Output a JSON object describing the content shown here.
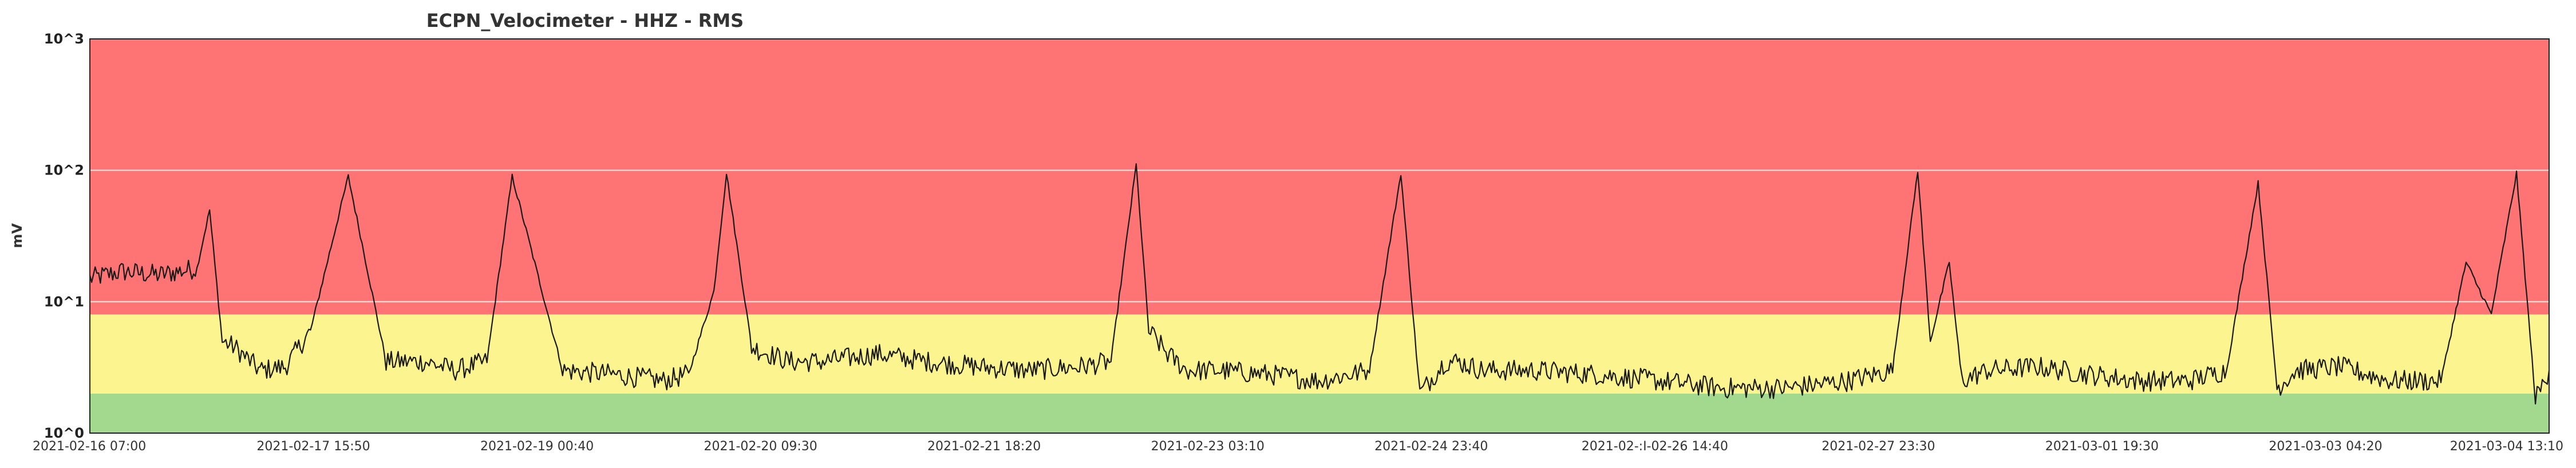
{
  "chart_data": {
    "type": "line",
    "title": "ECPN_Velocimeter - HHZ - RMS",
    "xlabel": "",
    "ylabel": "mV",
    "y_scale": "log",
    "ylim": [
      1,
      1000
    ],
    "y_ticks": [
      {
        "value": 1,
        "label": "10^0"
      },
      {
        "value": 10,
        "label": "10^1"
      },
      {
        "value": 100,
        "label": "10^2"
      },
      {
        "value": 1000,
        "label": "10^3"
      }
    ],
    "xlim": [
      "2021-02-16 07:00",
      "2021-03-04 13:10"
    ],
    "x_ticks": [
      "2021-02-16 07:00",
      "2021-02-17 15:50",
      "2021-02-19 00:40",
      "2021-02-20 09:30",
      "2021-02-21 18:20",
      "2021-02-23 03:10",
      "2021-02-24 23:40",
      "2021-02-:I-02-26 14:40",
      "2021-02-27 23:30",
      "2021-03-01 19:30",
      "2021-03-03 04:20",
      "2021-03-04 13:10"
    ],
    "grid": true,
    "bands": [
      {
        "from": 1,
        "to": 2,
        "color": "#a3d98e"
      },
      {
        "from": 2,
        "to": 8,
        "color": "#fcf48e"
      },
      {
        "from": 8,
        "to": 1000,
        "color": "#fe7474"
      }
    ],
    "line_color": "#1a1a1a",
    "series": [
      {
        "x": [
          "2021-02-16 07:00",
          "2021-02-16 12:00",
          "2021-02-16 18:00",
          "2021-02-17 00:00",
          "2021-02-17 02:00",
          "2021-02-17 04:00",
          "2021-02-17 06:00",
          "2021-02-17 10:00",
          "2021-02-17 14:00",
          "2021-02-17 18:00",
          "2021-02-18 00:00",
          "2021-02-18 06:00",
          "2021-02-18 12:00",
          "2021-02-18 15:00",
          "2021-02-18 17:00",
          "2021-02-18 19:00",
          "2021-02-18 22:00",
          "2021-02-19 02:00",
          "2021-02-19 10:00",
          "2021-02-19 18:00",
          "2021-02-20 02:00",
          "2021-02-20 06:00",
          "2021-02-20 10:00",
          "2021-02-20 12:00",
          "2021-02-20 16:00",
          "2021-02-20 22:00",
          "2021-02-21 03:00",
          "2021-02-21 12:00",
          "2021-02-21 20:00",
          "2021-02-22 04:00",
          "2021-02-22 12:00",
          "2021-02-22 20:00",
          "2021-02-23 01:00",
          "2021-02-23 05:00",
          "2021-02-23 07:00",
          "2021-02-23 10:00",
          "2021-02-23 13:00",
          "2021-02-23 18:00",
          "2021-02-24 02:00",
          "2021-02-24 10:00",
          "2021-02-24 18:00",
          "2021-02-24 23:00",
          "2021-02-25 02:00",
          "2021-02-25 06:00",
          "2021-02-25 08:00",
          "2021-02-25 12:00",
          "2021-02-25 20:00",
          "2021-02-26 06:00",
          "2021-02-26 16:00",
          "2021-02-27 02:00",
          "2021-02-27 12:00",
          "2021-02-27 22:00",
          "2021-02-28 05:00",
          "2021-02-28 09:00",
          "2021-02-28 11:00",
          "2021-02-28 14:00",
          "2021-02-28 16:00",
          "2021-02-28 20:00",
          "2021-03-01 04:00",
          "2021-03-01 12:00",
          "2021-03-01 20:00",
          "2021-03-02 04:00",
          "2021-03-02 10:00",
          "2021-03-02 15:00",
          "2021-03-02 18:00",
          "2021-03-02 21:00",
          "2021-03-03 04:00",
          "2021-03-03 12:00",
          "2021-03-03 20:00",
          "2021-03-04 00:00",
          "2021-03-04 04:00",
          "2021-03-04 08:00",
          "2021-03-04 11:00",
          "2021-03-04 13:10"
        ],
        "y": [
          15,
          17,
          16,
          18,
          50,
          5,
          4.5,
          3,
          3.2,
          6,
          90,
          3.5,
          3.5,
          3.2,
          3,
          3.2,
          3.5,
          90,
          3,
          2.8,
          2.5,
          2.8,
          12,
          95,
          4.5,
          3.5,
          3.5,
          4,
          3.5,
          3.2,
          3,
          3.2,
          3.5,
          110,
          6,
          4,
          3,
          3,
          2.8,
          2.5,
          3,
          95,
          2,
          3.5,
          3.5,
          3,
          3,
          2.8,
          2.5,
          2.2,
          2.2,
          2.5,
          3,
          100,
          5,
          20,
          2.5,
          3,
          3.2,
          2.8,
          2.5,
          2.5,
          3,
          80,
          2.2,
          3,
          3.2,
          2.5,
          2.5,
          20,
          8,
          95,
          1.8,
          3
        ]
      }
    ]
  }
}
